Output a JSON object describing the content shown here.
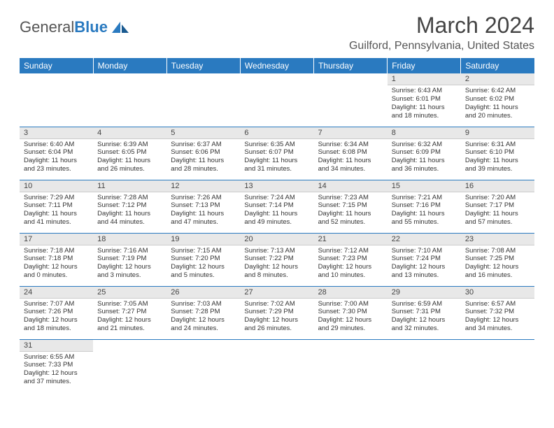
{
  "logo": {
    "text1": "General",
    "text2": "Blue"
  },
  "title": "March 2024",
  "location": "Guilford, Pennsylvania, United States",
  "colors": {
    "accent": "#2a7ac0",
    "header_bg": "#2a7ac0",
    "daynum_bg": "#e8e8e8",
    "text": "#333333"
  },
  "days": [
    "Sunday",
    "Monday",
    "Tuesday",
    "Wednesday",
    "Thursday",
    "Friday",
    "Saturday"
  ],
  "weeks": [
    [
      null,
      null,
      null,
      null,
      null,
      {
        "n": "1",
        "sr": "6:43 AM",
        "ss": "6:01 PM",
        "dl": "11 hours and 18 minutes."
      },
      {
        "n": "2",
        "sr": "6:42 AM",
        "ss": "6:02 PM",
        "dl": "11 hours and 20 minutes."
      }
    ],
    [
      {
        "n": "3",
        "sr": "6:40 AM",
        "ss": "6:04 PM",
        "dl": "11 hours and 23 minutes."
      },
      {
        "n": "4",
        "sr": "6:39 AM",
        "ss": "6:05 PM",
        "dl": "11 hours and 26 minutes."
      },
      {
        "n": "5",
        "sr": "6:37 AM",
        "ss": "6:06 PM",
        "dl": "11 hours and 28 minutes."
      },
      {
        "n": "6",
        "sr": "6:35 AM",
        "ss": "6:07 PM",
        "dl": "11 hours and 31 minutes."
      },
      {
        "n": "7",
        "sr": "6:34 AM",
        "ss": "6:08 PM",
        "dl": "11 hours and 34 minutes."
      },
      {
        "n": "8",
        "sr": "6:32 AM",
        "ss": "6:09 PM",
        "dl": "11 hours and 36 minutes."
      },
      {
        "n": "9",
        "sr": "6:31 AM",
        "ss": "6:10 PM",
        "dl": "11 hours and 39 minutes."
      }
    ],
    [
      {
        "n": "10",
        "sr": "7:29 AM",
        "ss": "7:11 PM",
        "dl": "11 hours and 41 minutes."
      },
      {
        "n": "11",
        "sr": "7:28 AM",
        "ss": "7:12 PM",
        "dl": "11 hours and 44 minutes."
      },
      {
        "n": "12",
        "sr": "7:26 AM",
        "ss": "7:13 PM",
        "dl": "11 hours and 47 minutes."
      },
      {
        "n": "13",
        "sr": "7:24 AM",
        "ss": "7:14 PM",
        "dl": "11 hours and 49 minutes."
      },
      {
        "n": "14",
        "sr": "7:23 AM",
        "ss": "7:15 PM",
        "dl": "11 hours and 52 minutes."
      },
      {
        "n": "15",
        "sr": "7:21 AM",
        "ss": "7:16 PM",
        "dl": "11 hours and 55 minutes."
      },
      {
        "n": "16",
        "sr": "7:20 AM",
        "ss": "7:17 PM",
        "dl": "11 hours and 57 minutes."
      }
    ],
    [
      {
        "n": "17",
        "sr": "7:18 AM",
        "ss": "7:18 PM",
        "dl": "12 hours and 0 minutes."
      },
      {
        "n": "18",
        "sr": "7:16 AM",
        "ss": "7:19 PM",
        "dl": "12 hours and 3 minutes."
      },
      {
        "n": "19",
        "sr": "7:15 AM",
        "ss": "7:20 PM",
        "dl": "12 hours and 5 minutes."
      },
      {
        "n": "20",
        "sr": "7:13 AM",
        "ss": "7:22 PM",
        "dl": "12 hours and 8 minutes."
      },
      {
        "n": "21",
        "sr": "7:12 AM",
        "ss": "7:23 PM",
        "dl": "12 hours and 10 minutes."
      },
      {
        "n": "22",
        "sr": "7:10 AM",
        "ss": "7:24 PM",
        "dl": "12 hours and 13 minutes."
      },
      {
        "n": "23",
        "sr": "7:08 AM",
        "ss": "7:25 PM",
        "dl": "12 hours and 16 minutes."
      }
    ],
    [
      {
        "n": "24",
        "sr": "7:07 AM",
        "ss": "7:26 PM",
        "dl": "12 hours and 18 minutes."
      },
      {
        "n": "25",
        "sr": "7:05 AM",
        "ss": "7:27 PM",
        "dl": "12 hours and 21 minutes."
      },
      {
        "n": "26",
        "sr": "7:03 AM",
        "ss": "7:28 PM",
        "dl": "12 hours and 24 minutes."
      },
      {
        "n": "27",
        "sr": "7:02 AM",
        "ss": "7:29 PM",
        "dl": "12 hours and 26 minutes."
      },
      {
        "n": "28",
        "sr": "7:00 AM",
        "ss": "7:30 PM",
        "dl": "12 hours and 29 minutes."
      },
      {
        "n": "29",
        "sr": "6:59 AM",
        "ss": "7:31 PM",
        "dl": "12 hours and 32 minutes."
      },
      {
        "n": "30",
        "sr": "6:57 AM",
        "ss": "7:32 PM",
        "dl": "12 hours and 34 minutes."
      }
    ],
    [
      {
        "n": "31",
        "sr": "6:55 AM",
        "ss": "7:33 PM",
        "dl": "12 hours and 37 minutes."
      },
      null,
      null,
      null,
      null,
      null,
      null
    ]
  ],
  "labels": {
    "sunrise": "Sunrise: ",
    "sunset": "Sunset: ",
    "daylight": "Daylight: "
  }
}
